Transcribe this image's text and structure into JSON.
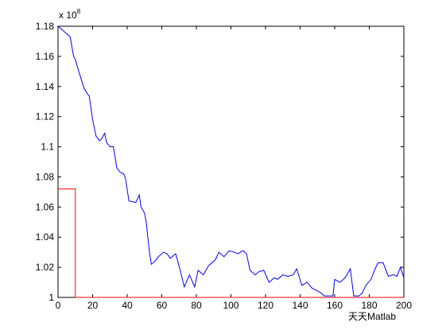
{
  "chart_data": {
    "type": "line",
    "y_multiplier": {
      "base": "x 10",
      "power": "8"
    },
    "watermark": "天天Matlab",
    "xlim": [
      0,
      200
    ],
    "ylim": [
      1,
      1.18
    ],
    "xticks": [
      0,
      20,
      40,
      60,
      80,
      100,
      120,
      140,
      160,
      180,
      200
    ],
    "yticks": [
      1,
      1.02,
      1.04,
      1.06,
      1.08,
      1.1,
      1.12,
      1.14,
      1.16,
      1.18
    ],
    "series": [
      {
        "color": "#0000ff",
        "x": [
          0,
          7,
          9,
          10,
          12,
          15,
          17,
          18,
          20,
          22,
          24,
          25,
          27,
          28,
          30,
          32,
          34,
          36,
          38,
          39,
          41,
          45,
          47,
          48,
          50,
          51,
          52,
          53,
          54,
          56,
          58,
          61,
          63,
          65,
          68,
          70,
          73,
          76,
          79,
          81,
          84,
          87,
          91,
          93,
          96,
          99,
          102,
          104,
          107,
          109,
          111,
          114,
          116,
          119,
          122,
          125,
          127,
          130,
          133,
          136,
          138,
          141,
          144,
          147,
          149,
          152,
          154,
          157,
          159,
          160,
          163,
          166,
          169,
          171,
          174,
          176,
          178,
          181,
          183,
          185,
          188,
          191,
          194,
          196,
          198,
          200
        ],
        "values": [
          1.18,
          1.173,
          1.16,
          1.158,
          1.15,
          1.139,
          1.135,
          1.134,
          1.118,
          1.107,
          1.104,
          1.105,
          1.109,
          1.103,
          1.1,
          1.1,
          1.086,
          1.083,
          1.082,
          1.079,
          1.064,
          1.063,
          1.068,
          1.06,
          1.056,
          1.05,
          1.039,
          1.029,
          1.022,
          1.024,
          1.027,
          1.03,
          1.029,
          1.026,
          1.029,
          1.021,
          1.007,
          1.015,
          1.007,
          1.018,
          1.015,
          1.021,
          1.025,
          1.03,
          1.027,
          1.031,
          1.03,
          1.029,
          1.031,
          1.029,
          1.018,
          1.015,
          1.017,
          1.018,
          1.01,
          1.013,
          1.012,
          1.015,
          1.014,
          1.015,
          1.019,
          1.008,
          1.01,
          1.006,
          1.005,
          1.003,
          1.001,
          1.001,
          1.001,
          1.012,
          1.01,
          1.013,
          1.019,
          1.001,
          1.001,
          1.003,
          1.008,
          1.012,
          1.018,
          1.023,
          1.023,
          1.014,
          1.015,
          1.014,
          1.02,
          1.013
        ]
      },
      {
        "color": "#ff0000",
        "x": [
          0,
          10,
          10,
          200
        ],
        "values": [
          1.072,
          1.072,
          1,
          1
        ]
      }
    ]
  }
}
